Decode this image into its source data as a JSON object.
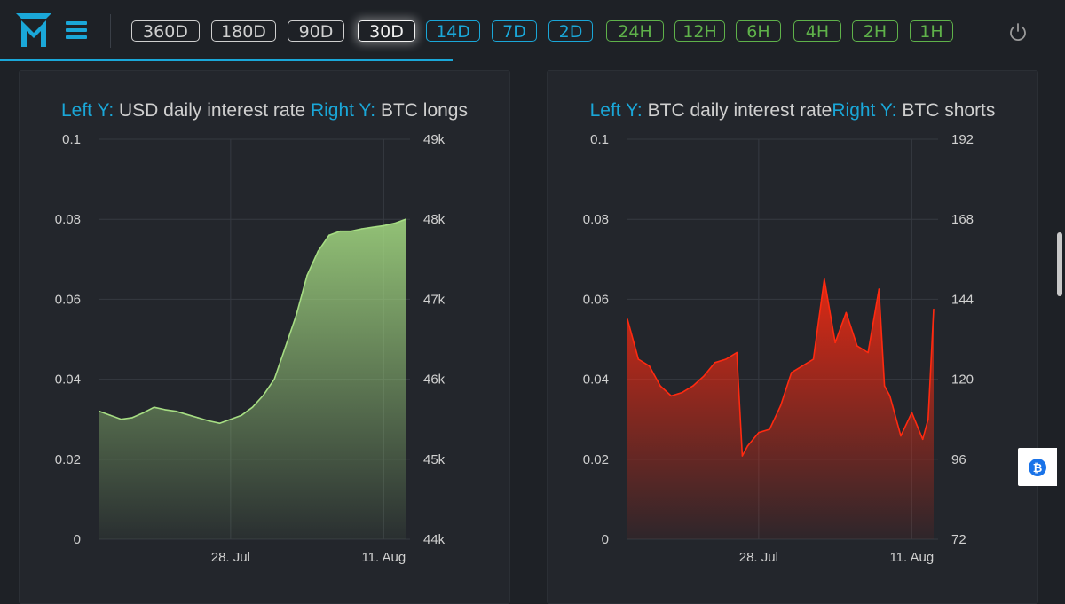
{
  "header": {
    "timeframes": [
      {
        "label": "360D",
        "style": "white"
      },
      {
        "label": "180D",
        "style": "white"
      },
      {
        "label": "90D",
        "style": "white"
      },
      {
        "label": "30D",
        "style": "active"
      },
      {
        "label": "14D",
        "style": "blue"
      },
      {
        "label": "7D",
        "style": "blue"
      },
      {
        "label": "2D",
        "style": "blue"
      },
      {
        "label": "24H",
        "style": "green"
      },
      {
        "label": "12H",
        "style": "green"
      },
      {
        "label": "6H",
        "style": "green"
      },
      {
        "label": "4H",
        "style": "green"
      },
      {
        "label": "2H",
        "style": "green"
      },
      {
        "label": "1H",
        "style": "green"
      }
    ],
    "icons": {
      "logo": "mm-logo",
      "menu": "hamburger-icon",
      "power": "power-icon"
    }
  },
  "colors": {
    "accent": "#1aa7d8",
    "green_series": "#a6dd83",
    "red_series": "#ff2a10",
    "background": "#1e2126",
    "panel": "#23262c"
  },
  "floating": {
    "icon": "bitcoin-icon"
  },
  "chart_data": [
    {
      "type": "area",
      "title_parts": [
        {
          "key": "Left Y:",
          "value": "USD daily interest rate"
        },
        {
          "key": "Right Y:",
          "value": "BTC longs"
        }
      ],
      "xlabel": "",
      "ylabel": "",
      "x_range": [
        "2021-07-16",
        "2021-08-13"
      ],
      "x_ticks": [
        {
          "label": "28. Jul",
          "date": "2021-07-28"
        },
        {
          "label": "11. Aug",
          "date": "2021-08-11"
        }
      ],
      "ylim_left": [
        0,
        0.1
      ],
      "y_ticks_left": [
        "0",
        "0.02",
        "0.04",
        "0.06",
        "0.08",
        "0.1"
      ],
      "ylim_right": [
        44000,
        49000
      ],
      "y_ticks_right": [
        "44k",
        "45k",
        "46k",
        "47k",
        "48k",
        "49k"
      ],
      "grid": true,
      "series": [
        {
          "color": "#a6dd83",
          "x": [
            "2021-07-16",
            "2021-07-17",
            "2021-07-18",
            "2021-07-19",
            "2021-07-20",
            "2021-07-21",
            "2021-07-22",
            "2021-07-23",
            "2021-07-24",
            "2021-07-25",
            "2021-07-26",
            "2021-07-27",
            "2021-07-28",
            "2021-07-29",
            "2021-07-30",
            "2021-07-31",
            "2021-08-01",
            "2021-08-02",
            "2021-08-03",
            "2021-08-04",
            "2021-08-05",
            "2021-08-06",
            "2021-08-07",
            "2021-08-08",
            "2021-08-09",
            "2021-08-10",
            "2021-08-11",
            "2021-08-12",
            "2021-08-13"
          ],
          "y": [
            45600,
            45550,
            45500,
            45520,
            45580,
            45650,
            45620,
            45600,
            45560,
            45520,
            45480,
            45450,
            45500,
            45550,
            45650,
            45800,
            46000,
            46400,
            46800,
            47300,
            47600,
            47800,
            47850,
            47850,
            47880,
            47900,
            47920,
            47950,
            48000
          ]
        }
      ]
    },
    {
      "type": "area",
      "title_parts": [
        {
          "key": "Left Y:",
          "value": "BTC daily interest rate"
        },
        {
          "key": "Right Y:",
          "value": "BTC shorts"
        }
      ],
      "xlabel": "",
      "ylabel": "",
      "x_range": [
        "2021-07-16",
        "2021-08-13"
      ],
      "x_ticks": [
        {
          "label": "28. Jul",
          "date": "2021-07-28"
        },
        {
          "label": "11. Aug",
          "date": "2021-08-11"
        }
      ],
      "ylim_left": [
        0,
        0.1
      ],
      "y_ticks_left": [
        "0",
        "0.02",
        "0.04",
        "0.06",
        "0.08",
        "0.1"
      ],
      "ylim_right": [
        72,
        192
      ],
      "y_ticks_right": [
        "72",
        "96",
        "120",
        "144",
        "168",
        "192"
      ],
      "grid": true,
      "series": [
        {
          "color": "#ff2a10",
          "x": [
            "2021-07-16",
            "2021-07-17",
            "2021-07-18",
            "2021-07-19",
            "2021-07-20",
            "2021-07-21",
            "2021-07-22",
            "2021-07-23",
            "2021-07-24",
            "2021-07-25",
            "2021-07-26",
            "2021-07-26T12:00",
            "2021-07-27",
            "2021-07-28",
            "2021-07-29",
            "2021-07-30",
            "2021-07-31",
            "2021-08-01",
            "2021-08-02",
            "2021-08-03",
            "2021-08-04",
            "2021-08-05",
            "2021-08-06",
            "2021-08-07",
            "2021-08-08",
            "2021-08-08T12:00",
            "2021-08-09",
            "2021-08-10",
            "2021-08-11",
            "2021-08-12",
            "2021-08-12T12:00",
            "2021-08-13"
          ],
          "y": [
            138,
            126,
            124,
            118,
            115,
            116,
            118,
            121,
            125,
            126,
            128,
            97,
            100,
            104,
            105,
            112,
            122,
            124,
            126,
            150,
            131,
            140,
            130,
            128,
            147,
            118,
            115,
            103,
            110,
            102,
            108,
            141
          ]
        }
      ]
    }
  ]
}
